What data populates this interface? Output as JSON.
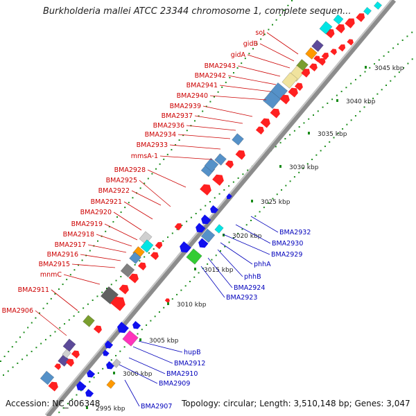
{
  "title": "Burkholderia mallei ATCC 23344 chromosome 1, complete sequen...",
  "footer": {
    "accession": "Accession: NC_006348",
    "stats": "Topology: circular; Length: 3,510,148 bp; Genes: 3,047"
  },
  "colors": {
    "forward_gene": "#ff2020",
    "reverse_gene": "#1010ee",
    "forward_label": "#cc0000",
    "reverse_label": "#0000bb",
    "backbone": "#8c8c8c",
    "tick": "#1a8c1a"
  },
  "ruler": [
    "2995 kbp",
    "3000 kbp",
    "3005 kbp",
    "3010 kbp",
    "3015 kbp",
    "3020 kbp",
    "3025 kbp",
    "3030 kbp",
    "3035 kbp",
    "3040 kbp",
    "3045 kbp"
  ],
  "forward_labels": [
    "soJ",
    "gidB",
    "gidA",
    "BMA2943",
    "BMA2942",
    "BMA2941",
    "BMA2940",
    "BMA2939",
    "BMA2937",
    "BMA2936",
    "BMA2934",
    "BMA2933",
    "mmsA-1",
    "BMA2928",
    "BMA2925",
    "BMA2922",
    "BMA2921",
    "BMA2920",
    "BMA2919",
    "BMA2918",
    "BMA2917",
    "BMA2916",
    "BMA2915",
    "mnmC",
    "BMA2911",
    "BMA2906"
  ],
  "reverse_labels": [
    "BMA2932",
    "BMA2930",
    "BMA2929",
    "phhA",
    "phhB",
    "BMA2924",
    "BMA2923",
    "hupB",
    "BMA2912",
    "BMA2910",
    "BMA2909",
    "BMA2907"
  ]
}
